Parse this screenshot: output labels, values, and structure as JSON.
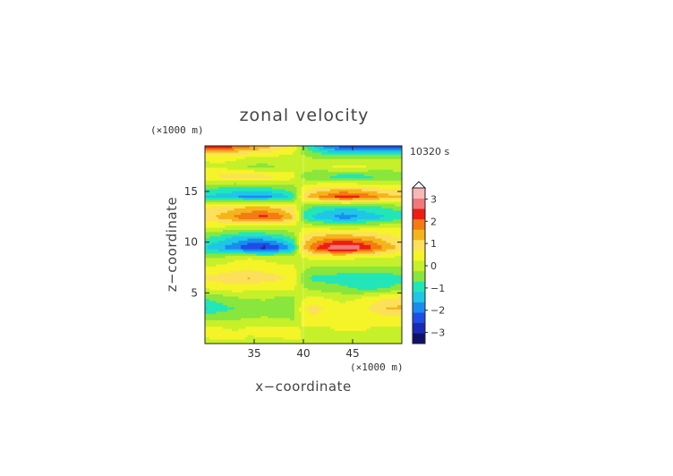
{
  "chart_data": {
    "type": "heatmap",
    "title": "zonal velocity",
    "xlabel": "x−coordinate",
    "ylabel": "z−coordinate",
    "x_unit": "(×1000 m)",
    "y_unit": "(×1000 m)",
    "time_label": "10320 s",
    "xlim": [
      30,
      50
    ],
    "ylim": [
      0,
      19.5
    ],
    "x_ticks": [
      {
        "v": 35,
        "label": "35"
      },
      {
        "v": 40,
        "label": "40"
      },
      {
        "v": 45,
        "label": "45"
      }
    ],
    "y_ticks": [
      {
        "v": 5,
        "label": "5"
      },
      {
        "v": 10,
        "label": "10"
      },
      {
        "v": 15,
        "label": "15"
      }
    ],
    "colorbar": {
      "min": -3.5,
      "max": 3.5,
      "step": 0.5,
      "colors": [
        "#10106a",
        "#1a2ab4",
        "#1e4ee6",
        "#1a8cf0",
        "#1ec6e8",
        "#22e6b8",
        "#88e63c",
        "#c6f02a",
        "#f4f428",
        "#fce05a",
        "#f6b41c",
        "#f47a14",
        "#ec1e14",
        "#f0787a",
        "#f8b8b8"
      ],
      "ticks": [
        {
          "v": 3,
          "label": "3"
        },
        {
          "v": 2,
          "label": "2"
        },
        {
          "v": 1,
          "label": "1"
        },
        {
          "v": 0,
          "label": "0"
        },
        {
          "v": -1,
          "label": "−1"
        },
        {
          "v": -2,
          "label": "−2"
        },
        {
          "v": -3,
          "label": "−3"
        }
      ]
    },
    "z_grid": {
      "x": [
        30,
        31.5,
        33,
        34.5,
        36,
        37.5,
        39,
        40,
        41,
        42.5,
        44,
        45.5,
        47,
        48.5,
        50
      ],
      "y": [
        0,
        0.5,
        1.5,
        2.5,
        3.5,
        4.5,
        5.5,
        6.5,
        7.5,
        8.5,
        9.5,
        10.5,
        11.5,
        12.5,
        13.5,
        14.5,
        15.5,
        16.5,
        17.5,
        18.5,
        19.5
      ],
      "values": [
        [
          0,
          0,
          0,
          0,
          0,
          0,
          0,
          0,
          0,
          0,
          0,
          0,
          0,
          0,
          0
        ],
        [
          0.2,
          0.3,
          0.3,
          0.2,
          0.2,
          0.2,
          0.3,
          0.2,
          0.2,
          0.1,
          0.1,
          0.1,
          0.2,
          0.2,
          0.2
        ],
        [
          0.4,
          0.3,
          0.2,
          0.3,
          0.4,
          0.4,
          0.3,
          0.2,
          0.1,
          0.2,
          0.3,
          0.3,
          0.2,
          0.1,
          0.2
        ],
        [
          -0.4,
          -0.3,
          -0.3,
          -0.2,
          -0.2,
          -0.2,
          -0.3,
          0.4,
          0.6,
          0.5,
          0.4,
          0.3,
          0.4,
          0.6,
          0.5
        ],
        [
          -1.2,
          -0.9,
          -0.7,
          -0.5,
          -0.4,
          -0.5,
          -0.4,
          0.6,
          0.9,
          0.6,
          0.4,
          0.5,
          0.8,
          1.2,
          1.3
        ],
        [
          -0.7,
          -0.5,
          -0.3,
          -0.2,
          -0.2,
          -0.3,
          -0.3,
          0.2,
          0.4,
          0.2,
          0.1,
          0.2,
          0.5,
          0.7,
          0.8
        ],
        [
          0.3,
          0.4,
          0.5,
          0.4,
          0.3,
          0.3,
          0.3,
          -0.2,
          -0.4,
          -0.5,
          -0.6,
          -0.8,
          -0.9,
          -0.7,
          -0.5
        ],
        [
          0.8,
          0.9,
          1.1,
          1.2,
          1.0,
          0.8,
          0.6,
          -0.5,
          -0.8,
          -0.9,
          -1.0,
          -1.0,
          -1.1,
          -1.0,
          -0.9
        ],
        [
          0.3,
          0.4,
          0.5,
          0.6,
          0.5,
          0.4,
          0.3,
          -0.1,
          -0.3,
          -0.3,
          -0.3,
          -0.3,
          -0.4,
          -0.3,
          -0.3
        ],
        [
          -0.3,
          -0.2,
          0.1,
          0.2,
          0.1,
          0.0,
          0.1,
          0.2,
          0.4,
          0.5,
          0.4,
          0.3,
          0.3,
          0.2,
          0.1
        ],
        [
          -1.2,
          -1.6,
          -2.0,
          -2.6,
          -2.8,
          -2.3,
          -1.4,
          1.2,
          2.0,
          2.7,
          3.1,
          2.8,
          2.2,
          1.5,
          1.0
        ],
        [
          -0.6,
          -0.9,
          -1.2,
          -1.4,
          -1.3,
          -1.0,
          -0.6,
          0.8,
          1.2,
          1.5,
          1.6,
          1.4,
          1.2,
          0.9,
          0.6
        ],
        [
          0.2,
          0.2,
          0.1,
          0.1,
          0.1,
          0.0,
          0.1,
          0.2,
          0.1,
          0.0,
          -0.1,
          0.0,
          0.1,
          0.2,
          0.2
        ],
        [
          1.0,
          1.3,
          1.7,
          2.1,
          2.3,
          1.9,
          1.2,
          -0.9,
          -1.3,
          -1.6,
          -1.9,
          -1.7,
          -1.4,
          -1.2,
          -1.0
        ],
        [
          0.6,
          0.8,
          1.0,
          1.2,
          1.2,
          1.0,
          0.7,
          -0.5,
          -0.7,
          -0.9,
          -1.1,
          -1.0,
          -0.8,
          -0.6,
          -0.5
        ],
        [
          -1.2,
          -1.4,
          -1.6,
          -1.8,
          -1.8,
          -1.5,
          -1.0,
          0.9,
          1.5,
          1.9,
          2.4,
          2.2,
          1.8,
          1.4,
          1.2
        ],
        [
          -0.5,
          -0.6,
          -0.7,
          -0.7,
          -0.6,
          -0.5,
          -0.3,
          0.3,
          0.6,
          0.7,
          0.8,
          0.7,
          0.6,
          0.5,
          0.5
        ],
        [
          0.7,
          0.8,
          0.9,
          1.0,
          0.9,
          0.7,
          0.4,
          -0.4,
          -0.7,
          -0.8,
          -0.9,
          -0.9,
          -0.8,
          -0.7,
          -0.6
        ],
        [
          0.1,
          0.1,
          0.0,
          -0.3,
          -0.4,
          -0.2,
          0.0,
          0.1,
          0.1,
          0.2,
          0.4,
          0.3,
          0.2,
          0.1,
          0.1
        ],
        [
          0.4,
          0.5,
          0.4,
          0.3,
          0.2,
          0.2,
          0.1,
          -0.2,
          -0.3,
          -0.4,
          -0.5,
          -0.5,
          -0.4,
          -0.3,
          -0.3
        ],
        [
          2.8,
          2.6,
          2.2,
          1.8,
          1.5,
          1.0,
          0.6,
          -0.6,
          -1.2,
          -2.0,
          -2.4,
          -2.6,
          -2.7,
          -2.8,
          -2.6
        ]
      ]
    }
  }
}
